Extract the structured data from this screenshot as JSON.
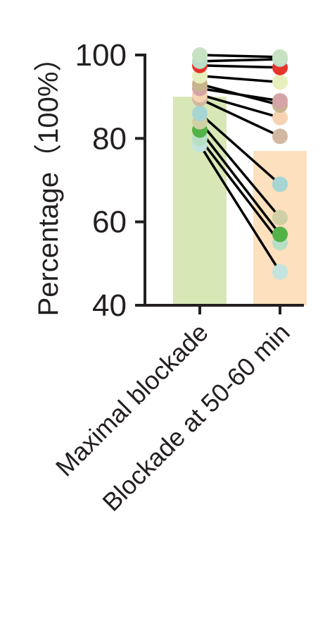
{
  "chart_data": {
    "type": "bar",
    "subtype": "paired-dot-bar",
    "ylabel": "Percentage（100%）",
    "ylim": [
      40,
      100
    ],
    "yticks": [
      40,
      60,
      80,
      100
    ],
    "grid": false,
    "legend": "none",
    "categories": [
      "Maximal blockade",
      "Blockade at 50-60 min"
    ],
    "bar_values": [
      90,
      77
    ],
    "bar_colors": [
      "#d7e7b6",
      "#fde0bd"
    ],
    "pairs": [
      {
        "before": 100.0,
        "after": 99.5,
        "color": "#c7e2c3"
      },
      {
        "before": 98.5,
        "after": 99.0,
        "color": "#b9dcc9"
      },
      {
        "before": 97.5,
        "after": 97.0,
        "color": "#e5342a"
      },
      {
        "before": 95.0,
        "after": 93.5,
        "color": "#e7efbc"
      },
      {
        "before": 93.0,
        "after": 88.0,
        "color": "#c7b58e"
      },
      {
        "before": 92.0,
        "after": 89.0,
        "color": "#d5a4a8"
      },
      {
        "before": 90.5,
        "after": 85.0,
        "color": "#f7d3b3"
      },
      {
        "before": 89.5,
        "after": 80.5,
        "color": "#d3b8a1"
      },
      {
        "before": 86.0,
        "after": 69.0,
        "color": "#a6d5d3"
      },
      {
        "before": 84.0,
        "after": 61.0,
        "color": "#d1cfa5"
      },
      {
        "before": 82.0,
        "after": 57.0,
        "color": "#53b248"
      },
      {
        "before": 80.0,
        "after": 55.0,
        "color": "#b8dfc5"
      },
      {
        "before": 78.5,
        "after": 48.0,
        "color": "#c4e4df"
      }
    ]
  }
}
